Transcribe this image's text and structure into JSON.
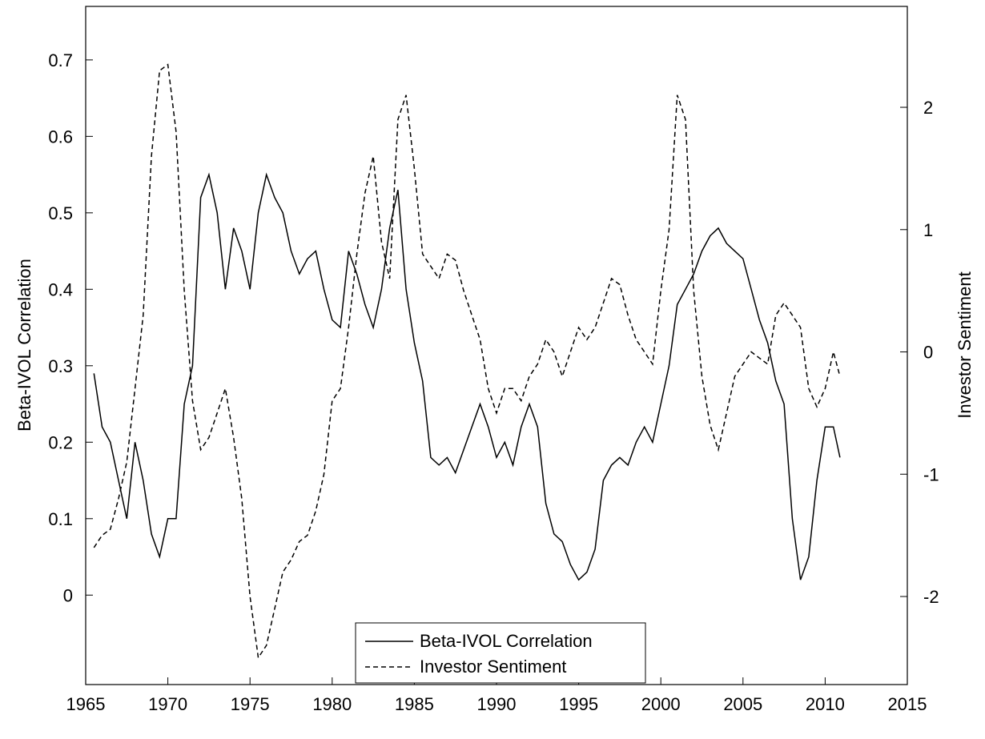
{
  "chart_data": {
    "type": "line",
    "x": [
      1965.5,
      1966,
      1966.5,
      1967,
      1967.5,
      1968,
      1968.5,
      1969,
      1969.5,
      1970,
      1970.5,
      1971,
      1971.5,
      1972,
      1972.5,
      1973,
      1973.5,
      1974,
      1974.5,
      1975,
      1975.5,
      1976,
      1976.5,
      1977,
      1977.5,
      1978,
      1978.5,
      1979,
      1979.5,
      1980,
      1980.5,
      1981,
      1981.5,
      1982,
      1982.5,
      1983,
      1983.5,
      1984,
      1984.5,
      1985,
      1985.5,
      1986,
      1986.5,
      1987,
      1987.5,
      1988,
      1988.5,
      1989,
      1989.5,
      1990,
      1990.5,
      1991,
      1991.5,
      1992,
      1992.5,
      1993,
      1993.5,
      1994,
      1994.5,
      1995,
      1995.5,
      1996,
      1996.5,
      1997,
      1997.5,
      1998,
      1998.5,
      1999,
      1999.5,
      2000,
      2000.5,
      2001,
      2001.5,
      2002,
      2002.5,
      2003,
      2003.5,
      2004,
      2004.5,
      2005,
      2005.5,
      2006,
      2006.5,
      2007,
      2007.5,
      2008,
      2008.5,
      2009,
      2009.5,
      2010,
      2010.5,
      2010.9
    ],
    "series": [
      {
        "name": "Beta-IVOL Correlation",
        "color": "#000000",
        "dash": "solid",
        "values": [
          0.29,
          0.22,
          0.2,
          0.15,
          0.1,
          0.2,
          0.15,
          0.08,
          0.05,
          0.1,
          0.1,
          0.25,
          0.3,
          0.52,
          0.55,
          0.5,
          0.4,
          0.48,
          0.45,
          0.4,
          0.5,
          0.55,
          0.52,
          0.5,
          0.45,
          0.42,
          0.44,
          0.45,
          0.4,
          0.36,
          0.35,
          0.45,
          0.42,
          0.38,
          0.35,
          0.4,
          0.48,
          0.53,
          0.4,
          0.33,
          0.28,
          0.18,
          0.17,
          0.18,
          0.16,
          0.19,
          0.22,
          0.25,
          0.22,
          0.18,
          0.2,
          0.17,
          0.22,
          0.25,
          0.22,
          0.12,
          0.08,
          0.07,
          0.04,
          0.02,
          0.03,
          0.06,
          0.15,
          0.17,
          0.18,
          0.17,
          0.2,
          0.22,
          0.2,
          0.25,
          0.3,
          0.38,
          0.4,
          0.42,
          0.45,
          0.47,
          0.48,
          0.46,
          0.45,
          0.44,
          0.4,
          0.36,
          0.33,
          0.28,
          0.25,
          0.1,
          0.02,
          0.05,
          0.15,
          0.22,
          0.22,
          0.18
        ]
      },
      {
        "name": "Investor Sentiment",
        "color": "#000000",
        "dash": "dashed",
        "axis": "y2",
        "values": [
          -1.6,
          -1.5,
          -1.45,
          -1.2,
          -0.9,
          -0.3,
          0.3,
          1.6,
          2.3,
          2.35,
          1.8,
          0.5,
          -0.4,
          -0.8,
          -0.7,
          -0.5,
          -0.3,
          -0.7,
          -1.2,
          -2.0,
          -2.5,
          -2.4,
          -2.1,
          -1.8,
          -1.7,
          -1.55,
          -1.5,
          -1.3,
          -1.0,
          -0.4,
          -0.3,
          0.2,
          0.8,
          1.3,
          1.6,
          0.9,
          0.6,
          1.9,
          2.1,
          1.5,
          0.8,
          0.7,
          0.6,
          0.8,
          0.75,
          0.5,
          0.3,
          0.1,
          -0.3,
          -0.5,
          -0.3,
          -0.3,
          -0.4,
          -0.2,
          -0.1,
          0.1,
          0.0,
          -0.2,
          0.0,
          0.2,
          0.1,
          0.2,
          0.4,
          0.6,
          0.55,
          0.3,
          0.1,
          0.0,
          -0.1,
          0.5,
          1.0,
          2.1,
          1.9,
          0.5,
          -0.2,
          -0.6,
          -0.8,
          -0.5,
          -0.2,
          -0.1,
          0.0,
          -0.05,
          -0.1,
          0.3,
          0.4,
          0.3,
          0.2,
          -0.3,
          -0.45,
          -0.3,
          0.0,
          -0.2
        ]
      }
    ],
    "ylabel": "Beta-IVOL Correlation",
    "y2label": "Investor Sentiment",
    "xlim": [
      1965,
      2015
    ],
    "xticks": [
      1965,
      1970,
      1975,
      1980,
      1985,
      1990,
      1995,
      2000,
      2005,
      2010,
      2015
    ],
    "ylim": [
      -0.117,
      0.77
    ],
    "yticks": [
      0,
      0.1,
      0.2,
      0.3,
      0.4,
      0.5,
      0.6,
      0.7
    ],
    "y2lim": [
      -2.72,
      2.825
    ],
    "y2ticks": [
      -2,
      -1,
      0,
      1,
      2
    ],
    "grid": false,
    "legend": "lower center"
  }
}
